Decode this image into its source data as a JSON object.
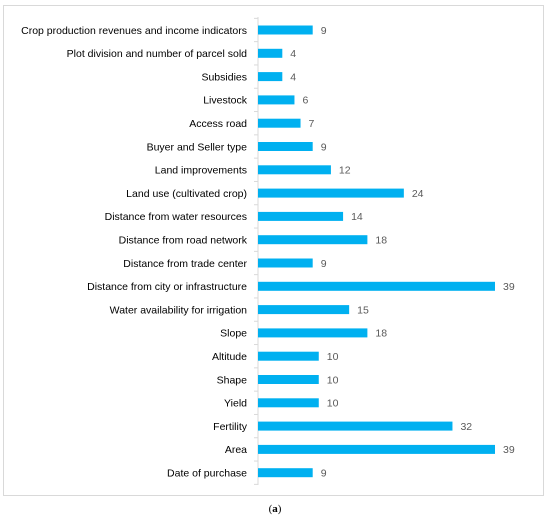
{
  "chart_data": {
    "type": "bar",
    "orientation": "horizontal",
    "categories": [
      "Crop production revenues and income indicators",
      "Plot division and number of parcel sold",
      "Subsidies",
      "Livestock",
      "Access road",
      "Buyer and Seller type",
      "Land improvements",
      "Land use (cultivated crop)",
      "Distance from water resources",
      "Distance from road network",
      "Distance from trade center",
      "Distance from city or infrastructure",
      "Water availability for irrigation",
      "Slope",
      "Altitude",
      "Shape",
      "Yield",
      "Fertility",
      "Area",
      "Date of purchase"
    ],
    "values": [
      9,
      4,
      4,
      6,
      7,
      9,
      12,
      24,
      14,
      18,
      9,
      39,
      15,
      18,
      10,
      10,
      10,
      32,
      39,
      9
    ],
    "xlim": [
      0,
      39
    ],
    "grid": false,
    "data_labels": true,
    "bar_color": "#00b0f0",
    "axis_color": "#d9d9d9"
  },
  "caption": {
    "open": "(",
    "label": "a",
    "close": ")"
  }
}
